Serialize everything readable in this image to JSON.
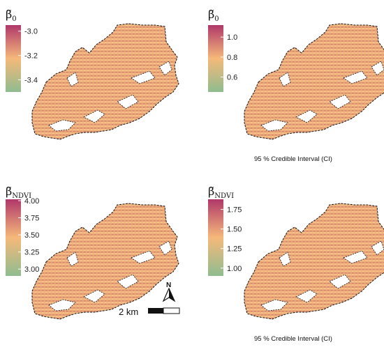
{
  "colors": {
    "low": "#8fbc8f",
    "mid": "#f5b97a",
    "high": "#b0386a",
    "background": "#ffffff"
  },
  "panels": [
    {
      "id": "beta0-mean",
      "title_symbol": "β̃",
      "title_subscript": "0",
      "legend": {
        "min": -3.5,
        "max": -2.95,
        "ticks": [
          "-3.0",
          "-3.2",
          "-3.4"
        ],
        "tick_values": [
          -3.0,
          -3.2,
          -3.4
        ]
      },
      "caption": ""
    },
    {
      "id": "beta0-ci",
      "title_symbol": "β̃",
      "title_subscript": "0",
      "legend": {
        "min": 0.45,
        "max": 1.12,
        "ticks": [
          "1.0",
          "0.8",
          "0.6"
        ],
        "tick_values": [
          1.0,
          0.8,
          0.6
        ]
      },
      "caption": "95 % Credible Interval (CI)"
    },
    {
      "id": "betandvi-mean",
      "title_symbol": "β̃",
      "title_subscript": "NDVI",
      "legend": {
        "min": 2.9,
        "max": 4.02,
        "ticks": [
          "4.00",
          "3.75",
          "3.50",
          "3.25",
          "3.00"
        ],
        "tick_values": [
          4.0,
          3.75,
          3.5,
          3.25,
          3.0
        ]
      },
      "caption": ""
    },
    {
      "id": "betandvi-ci",
      "title_symbol": "β̃",
      "title_subscript": "NDVI",
      "legend": {
        "min": 0.9,
        "max": 1.88,
        "ticks": [
          "1.75",
          "1.50",
          "1.25",
          "1.00"
        ],
        "tick_values": [
          1.75,
          1.5,
          1.25,
          1.0
        ]
      },
      "caption": "95 % Credible Interval (CI)"
    }
  ],
  "scalebar": {
    "label": "2 km"
  },
  "north_arrow": {
    "label": "N"
  }
}
